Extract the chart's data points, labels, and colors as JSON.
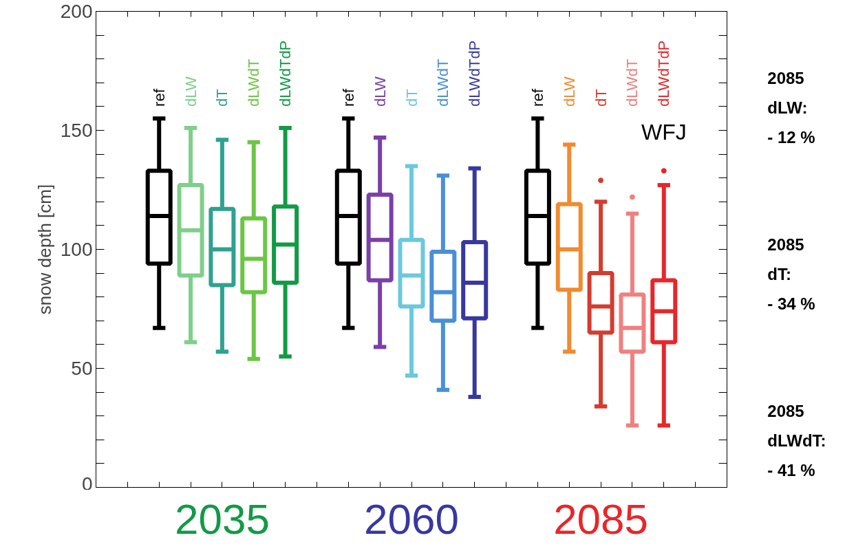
{
  "chart_data": {
    "type": "box",
    "ylabel": "snow depth [cm]",
    "categories": [
      null,
      "ref",
      "dLW",
      "dT",
      "dLWdT",
      "dLWdTdP",
      null,
      "ref",
      "dLW",
      "dT",
      "dLWdT",
      "dLWdTdP",
      null,
      "ref",
      "dLW",
      "dT",
      "dLWdT",
      "dLWdTdP",
      null
    ],
    "colors": [
      null,
      "#000000",
      "#7fcf8a",
      "#2ea28e",
      "#6cc644",
      "#129a46",
      null,
      "#000000",
      "#7a3fa8",
      "#6cc8dc",
      "#4a8fd6",
      "#3838a0",
      null,
      "#000000",
      "#f28a2e",
      "#d43c2e",
      "#f08080",
      "#e8262a",
      null
    ],
    "boxes": [
      null,
      {
        "low": 67,
        "q1": 94,
        "median": 114,
        "q3": 133,
        "high": 155
      },
      {
        "low": 61,
        "q1": 89,
        "median": 108,
        "q3": 127,
        "high": 151
      },
      {
        "low": 57,
        "q1": 85,
        "median": 100,
        "q3": 117,
        "high": 146
      },
      {
        "low": 54,
        "q1": 82,
        "median": 96,
        "q3": 113,
        "high": 145
      },
      {
        "low": 55,
        "q1": 86,
        "median": 102,
        "q3": 118,
        "high": 151
      },
      null,
      {
        "low": 67,
        "q1": 94,
        "median": 114,
        "q3": 133,
        "high": 155
      },
      {
        "low": 59,
        "q1": 87,
        "median": 104,
        "q3": 123,
        "high": 147
      },
      {
        "low": 47,
        "q1": 76,
        "median": 89,
        "q3": 104,
        "high": 135
      },
      {
        "low": 41,
        "q1": 70,
        "median": 82,
        "q3": 99,
        "high": 131
      },
      {
        "low": 38,
        "q1": 71,
        "median": 86,
        "q3": 103,
        "high": 134
      },
      null,
      {
        "low": 67,
        "q1": 94,
        "median": 114,
        "q3": 133,
        "high": 155
      },
      {
        "low": 57,
        "q1": 83,
        "median": 100,
        "q3": 119,
        "high": 144
      },
      {
        "low": 34,
        "q1": 65,
        "median": 76,
        "q3": 90,
        "high": 120,
        "outliers": [
          129
        ]
      },
      {
        "low": 26,
        "q1": 57,
        "median": 67,
        "q3": 81,
        "high": 115,
        "outliers": [
          122
        ]
      },
      {
        "low": 26,
        "q1": 61,
        "median": 74,
        "q3": 87,
        "high": 127,
        "outliers": [
          133
        ]
      },
      null
    ],
    "ylim": [
      0,
      200
    ],
    "yticks": [
      0,
      {
        "value": 10,
        "label": null
      },
      {
        "value": 20,
        "label": null
      },
      {
        "value": 30,
        "label": null
      },
      {
        "value": 40,
        "label": null
      },
      50,
      {
        "value": 60,
        "label": null
      },
      {
        "value": 70,
        "label": null
      },
      {
        "value": 80,
        "label": null
      },
      {
        "value": 90,
        "label": null
      },
      100,
      {
        "value": 110,
        "label": null
      },
      {
        "value": 120,
        "label": null
      },
      {
        "value": 130,
        "label": null
      },
      {
        "value": 140,
        "label": null
      },
      150,
      {
        "value": 160,
        "label": null
      },
      {
        "value": 170,
        "label": null
      },
      {
        "value": 180,
        "label": null
      },
      {
        "value": 190,
        "label": null
      },
      200
    ],
    "grid": false,
    "annotations": [
      "2035",
      "2060",
      "2085",
      "WFJ",
      "2085\ndLW:\n- 12 %",
      "2085\ndT:\n- 34 %",
      "2085\ndLWdT:\n- 41 %"
    ]
  }
}
